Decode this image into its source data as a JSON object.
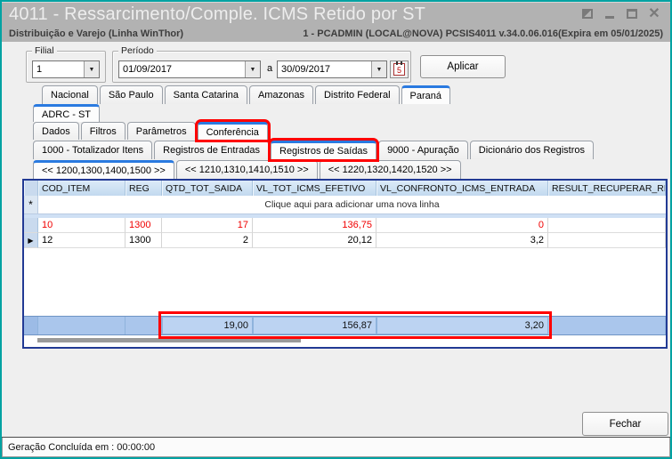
{
  "window": {
    "title": "4011 - Ressarcimento/Comple. ICMS Retido por ST",
    "app_line": "Distribuição e Varejo (Linha WinThor)",
    "session_line": "1 - PCADMIN (LOCAL@NOVA)   PCSIS4011  v.34.0.06.016(Expira em 05/01/2025)"
  },
  "filters": {
    "filial": {
      "label": "Filial",
      "value": "1"
    },
    "periodo": {
      "label": "Período",
      "from": "01/09/2017",
      "separator": "a",
      "to": "30/09/2017"
    },
    "aplicar_label": "Aplicar"
  },
  "icons": {
    "dropdown": "▼",
    "calendar_day": "5",
    "new_row_marker": "*",
    "current_row_marker": "▶",
    "close": "✕"
  },
  "tabs": {
    "states": [
      {
        "label": "Nacional",
        "selected": false
      },
      {
        "label": "São Paulo",
        "selected": false
      },
      {
        "label": "Santa Catarina",
        "selected": false
      },
      {
        "label": "Amazonas",
        "selected": false
      },
      {
        "label": "Distrito Federal",
        "selected": false
      },
      {
        "label": "Paraná",
        "selected": true
      }
    ],
    "adrc": [
      {
        "label": "ADRC - ST",
        "selected": true
      }
    ],
    "sections": [
      {
        "label": "Dados",
        "selected": false
      },
      {
        "label": "Filtros",
        "selected": false
      },
      {
        "label": "Parâmetros",
        "selected": false
      },
      {
        "label": "Conferência",
        "selected": true,
        "highlighted": true
      }
    ],
    "registers": [
      {
        "label": "1000 - Totalizador Itens",
        "selected": false
      },
      {
        "label": "Registros de Entradas",
        "selected": false
      },
      {
        "label": "Registros de Saídas",
        "selected": true,
        "highlighted": true
      },
      {
        "label": "9000 - Apuração",
        "selected": false
      },
      {
        "label": "Dicionário dos Registros",
        "selected": false
      }
    ],
    "ranges": [
      {
        "label": "<< 1200,1300,1400,1500 >>",
        "selected": true
      },
      {
        "label": "<< 1210,1310,1410,1510 >>",
        "selected": false
      },
      {
        "label": "<< 1220,1320,1420,1520 >>",
        "selected": false
      }
    ]
  },
  "grid": {
    "columns": [
      "COD_ITEM",
      "REG",
      "QTD_TOT_SAIDA",
      "VL_TOT_ICMS_EFETIVO",
      "VL_CONFRONTO_ICMS_ENTRADA",
      "RESULT_RECUPERAR_RESS"
    ],
    "new_row_text": "Clique aqui para adicionar uma nova linha",
    "rows": [
      {
        "marker": "",
        "cod_item": "10",
        "reg": "1300",
        "qtd_tot_saida": "17",
        "vl_tot_icms_efetivo": "136,75",
        "vl_confronto_icms_entrada": "0",
        "result": ""
      },
      {
        "marker": "▶",
        "cod_item": "12",
        "reg": "1300",
        "qtd_tot_saida": "2",
        "vl_tot_icms_efetivo": "20,12",
        "vl_confronto_icms_entrada": "3,2",
        "result": ""
      }
    ],
    "totals": {
      "qtd_tot_saida": "19,00",
      "vl_tot_icms_efetivo": "156,87",
      "vl_confronto_icms_entrada": "3,20"
    }
  },
  "footer": {
    "close_label": "Fechar",
    "status_text": "Geração Concluída em : 00:00:00"
  },
  "colors": {
    "highlight_box": "#ff0000",
    "alert_row_text": "#f00000",
    "tab_accent": "#2a7ae0",
    "grid_border": "#223a94",
    "window_border": "#00a2a2"
  }
}
